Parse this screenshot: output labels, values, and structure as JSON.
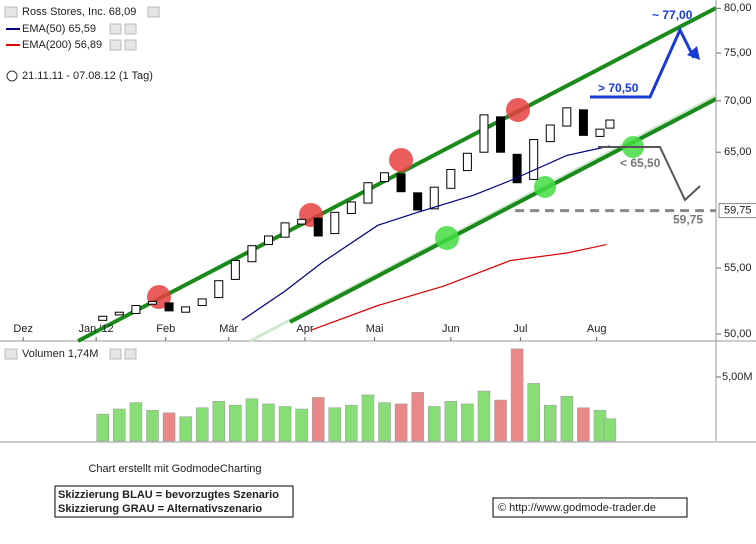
{
  "chart_data": [
    {
      "type": "candlestick",
      "title": "Ross Stores, Inc. 68,09",
      "subtitle": "21.11.11 - 07.08.12 (1 Tag)",
      "x": [
        31,
        36,
        41,
        46,
        51,
        56,
        61,
        66,
        71,
        76,
        81,
        86,
        91,
        96,
        101,
        106,
        111,
        116,
        121,
        126,
        131,
        136,
        141,
        146,
        151,
        156,
        161,
        166,
        171,
        176,
        181,
        184
      ],
      "xlim": [
        0,
        216
      ],
      "xticks": [
        {
          "value": 7,
          "label": "Dez"
        },
        {
          "value": 29,
          "label": "Jan '12"
        },
        {
          "value": 50,
          "label": "Feb"
        },
        {
          "value": 69,
          "label": "Mär"
        },
        {
          "value": 92,
          "label": "Apr"
        },
        {
          "value": 113,
          "label": "Mai"
        },
        {
          "value": 136,
          "label": "Jun"
        },
        {
          "value": 157,
          "label": "Jul"
        },
        {
          "value": 180,
          "label": "Aug"
        }
      ],
      "ylim": [
        49.5,
        80.5
      ],
      "log_scale": true,
      "yticks": [
        {
          "value": 80,
          "label": "80,00"
        },
        {
          "value": 75,
          "label": "75,00"
        },
        {
          "value": 70,
          "label": "70,00"
        },
        {
          "value": 65,
          "label": "65,00"
        },
        {
          "value": 55,
          "label": "55,00"
        },
        {
          "value": 50,
          "label": "50,00"
        }
      ],
      "series": [
        {
          "name": "Ross Stores, Inc. 68,09",
          "up_color": "#ffffff",
          "down_color": "#000000",
          "open": [
            51.0,
            51.4,
            51.5,
            52.2,
            52.3,
            51.6,
            52.1,
            52.7,
            54.1,
            55.5,
            56.9,
            57.5,
            58.6,
            59.1,
            57.8,
            59.5,
            60.4,
            62.3,
            63.0,
            61.3,
            59.9,
            61.7,
            63.3,
            65.0,
            68.4,
            64.8,
            62.5,
            66.0,
            67.5,
            69.1,
            66.5,
            67.3
          ],
          "close": [
            51.3,
            51.6,
            52.1,
            52.4,
            51.7,
            52.0,
            52.6,
            54.0,
            55.6,
            56.8,
            57.6,
            58.7,
            59.0,
            57.6,
            59.6,
            60.5,
            62.2,
            63.1,
            61.4,
            59.8,
            61.8,
            63.4,
            64.9,
            68.6,
            65.0,
            62.2,
            66.2,
            67.6,
            69.3,
            66.6,
            67.2,
            68.09
          ]
        }
      ],
      "lines": [
        {
          "name": "EMA(50) 65,59",
          "color": "#000080",
          "x": [
            73,
            86,
            97,
            114,
            126,
            143,
            154,
            171,
            184
          ],
          "values": [
            51.0,
            53.2,
            55.4,
            58.5,
            59.6,
            61.1,
            62.4,
            64.7,
            65.59
          ]
        },
        {
          "name": "EMA(200) 56,89",
          "color": "#dd0000",
          "x": [
            94,
            114,
            134,
            154,
            171,
            183
          ],
          "values": [
            50.3,
            52.1,
            53.6,
            55.6,
            56.2,
            56.89
          ]
        }
      ],
      "annotations": [
        "~ 77,00",
        "> 70,50",
        "< 65,50"
      ],
      "marker_level": {
        "value": 59.75,
        "label": "59,75"
      }
    },
    {
      "type": "bar",
      "title": "Volumen 1,74M",
      "ylim": [
        0,
        7.5
      ],
      "yticks": [
        {
          "value": 5,
          "label": "5,00M"
        }
      ],
      "up_color": "#88dd77",
      "down_color": "#e88888",
      "values": [
        2.1,
        2.5,
        3.0,
        2.4,
        2.2,
        1.9,
        2.6,
        3.1,
        2.8,
        3.3,
        2.9,
        2.7,
        2.5,
        3.4,
        2.6,
        2.8,
        3.6,
        3.0,
        2.9,
        3.8,
        2.7,
        3.1,
        2.9,
        3.9,
        3.2,
        7.2,
        4.5,
        2.8,
        3.5,
        2.6,
        2.4,
        1.74
      ]
    }
  ],
  "footer": {
    "credit": "Chart erstellt mit GodmodeCharting",
    "legend_blue": "Skizzierung BLAU = bevorzugtes Szenario",
    "legend_gray": "Skizzierung GRAU = Alternativszenario",
    "source": "© http://www.godmode-trader.de"
  }
}
